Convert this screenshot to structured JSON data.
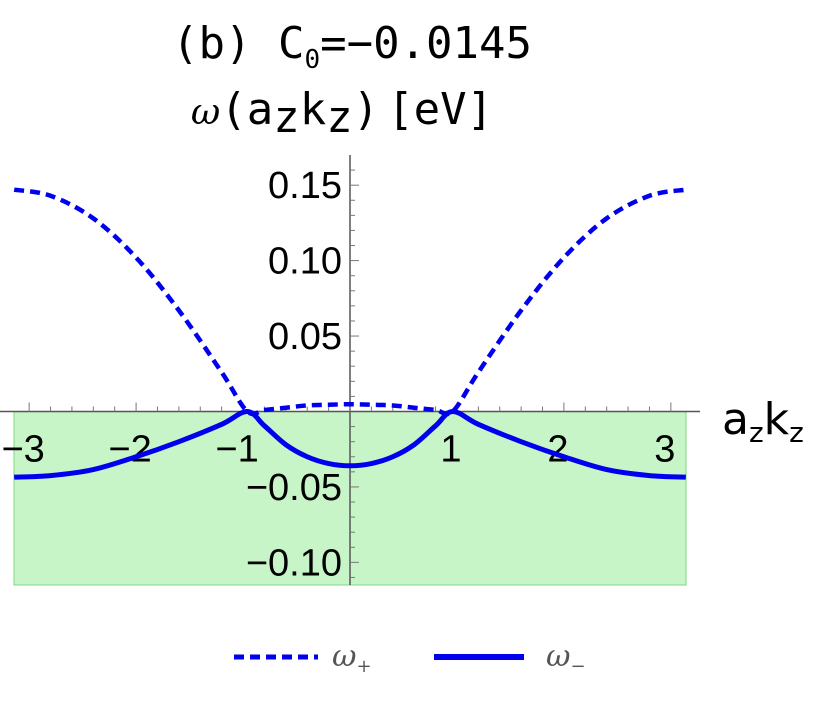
{
  "chart_data": {
    "type": "line",
    "title": "(b) C",
    "title_sub": "0",
    "title_value": "=−0.0145",
    "ylabel": {
      "func": "ω",
      "open": "(",
      "a": "a",
      "a_sub": "z",
      "k": "k",
      "k_sub": "z",
      "close": ")",
      "unit": "[eV]"
    },
    "xlabel": {
      "a": "a",
      "a_sub": "z",
      "k": "k",
      "k_sub": "z"
    },
    "xlim": [
      -3.14159,
      3.14159
    ],
    "ylim": [
      -0.115,
      0.17
    ],
    "x_ticks": [
      {
        "value": -3,
        "label": "−3"
      },
      {
        "value": -2,
        "label": "−2"
      },
      {
        "value": -1,
        "label": "−1"
      },
      {
        "value": 1,
        "label": "1"
      },
      {
        "value": 2,
        "label": "2"
      },
      {
        "value": 3,
        "label": "3"
      }
    ],
    "y_ticks": [
      {
        "value": 0.15,
        "label": "0.15"
      },
      {
        "value": 0.1,
        "label": "0.10"
      },
      {
        "value": 0.05,
        "label": "0.05"
      },
      {
        "value": -0.05,
        "label": "−0.05"
      },
      {
        "value": -0.1,
        "label": "−0.10"
      }
    ],
    "shaded_region": {
      "y_from": -0.115,
      "y_to": 0,
      "color": "#c8f5c8",
      "edge_color": "#7fd77f"
    },
    "series": [
      {
        "name": "ω",
        "name_sub": "+",
        "style": "dashed",
        "color": "#0000ee",
        "x": [
          -3.14,
          -2.8,
          -2.4,
          -2.0,
          -1.6,
          -1.2,
          -0.96,
          -0.8,
          -0.6,
          -0.4,
          -0.2,
          0.0,
          0.2,
          0.4,
          0.6,
          0.8,
          0.96,
          1.2,
          1.6,
          2.0,
          2.4,
          2.8,
          3.14
        ],
        "y": [
          0.147,
          0.143,
          0.128,
          0.102,
          0.067,
          0.026,
          0.0,
          0.001,
          0.0025,
          0.004,
          0.0045,
          0.0048,
          0.0045,
          0.004,
          0.0025,
          0.001,
          0.0,
          0.026,
          0.067,
          0.102,
          0.128,
          0.143,
          0.147
        ]
      },
      {
        "name": "ω",
        "name_sub": "−",
        "style": "solid",
        "color": "#0000ee",
        "x": [
          -3.14,
          -2.8,
          -2.4,
          -2.0,
          -1.6,
          -1.2,
          -0.96,
          -0.8,
          -0.6,
          -0.4,
          -0.2,
          0.0,
          0.2,
          0.4,
          0.6,
          0.8,
          0.96,
          1.2,
          1.6,
          2.0,
          2.4,
          2.8,
          3.14
        ],
        "y": [
          -0.0435,
          -0.0425,
          -0.0385,
          -0.03,
          -0.02,
          -0.0085,
          0.0,
          -0.0095,
          -0.022,
          -0.03,
          -0.0345,
          -0.036,
          -0.0345,
          -0.03,
          -0.022,
          -0.0095,
          0.0,
          -0.0085,
          -0.02,
          -0.03,
          -0.0385,
          -0.0425,
          -0.0435
        ]
      }
    ],
    "grid": false,
    "legend": "bottom-center"
  }
}
